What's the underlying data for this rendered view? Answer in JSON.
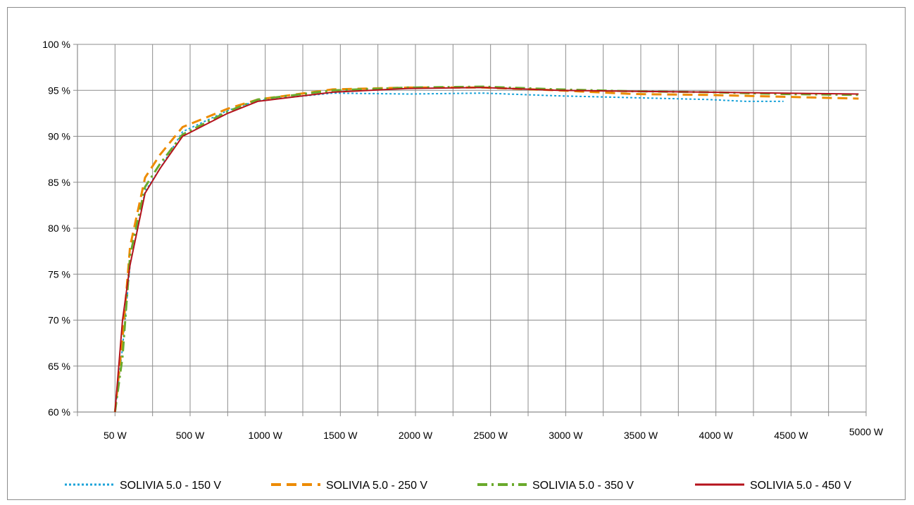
{
  "chart_data": {
    "type": "line",
    "title": "",
    "xlabel": "",
    "ylabel": "",
    "ylim": [
      60,
      100
    ],
    "yticks": [
      "60 %",
      "65 %",
      "70 %",
      "75 %",
      "80 %",
      "85 %",
      "90 %",
      "95 %",
      "100 %"
    ],
    "xticks": [
      "50 W",
      "500 W",
      "1000 W",
      "1500 W",
      "2000 W",
      "2500 W",
      "3000 W",
      "3500 W",
      "4000 W",
      "4500 W",
      "5000 W"
    ],
    "grid": true,
    "legend_position": "bottom",
    "series": [
      {
        "name": "SOLIVIA 5.0 - 150 V",
        "color": "#1aa3d9",
        "dash": "dotted",
        "points": [
          [
            50,
            60
          ],
          [
            100,
            67
          ],
          [
            150,
            76
          ],
          [
            250,
            84
          ],
          [
            350,
            86.5
          ],
          [
            500,
            90.5
          ],
          [
            800,
            92.8
          ],
          [
            1000,
            93.9
          ],
          [
            1500,
            94.7
          ],
          [
            2000,
            94.6
          ],
          [
            2500,
            94.7
          ],
          [
            3000,
            94.4
          ],
          [
            3500,
            94.2
          ],
          [
            4000,
            94.0
          ],
          [
            4250,
            93.8
          ],
          [
            4500,
            93.8
          ]
        ]
      },
      {
        "name": "SOLIVIA 5.0 - 250 V",
        "color": "#ed8b00",
        "dash": "dashed",
        "points": [
          [
            50,
            60
          ],
          [
            100,
            68
          ],
          [
            150,
            78
          ],
          [
            250,
            85.5
          ],
          [
            350,
            88
          ],
          [
            500,
            91
          ],
          [
            800,
            93
          ],
          [
            1000,
            94
          ],
          [
            1500,
            95.1
          ],
          [
            2000,
            95.3
          ],
          [
            2500,
            95.3
          ],
          [
            3000,
            95
          ],
          [
            3500,
            94.6
          ],
          [
            4000,
            94.5
          ],
          [
            4500,
            94.3
          ],
          [
            5000,
            94.1
          ]
        ]
      },
      {
        "name": "SOLIVIA 5.0 - 350 V",
        "color": "#6aaa2c",
        "dash": "dashdot",
        "points": [
          [
            50,
            60
          ],
          [
            100,
            66
          ],
          [
            150,
            77
          ],
          [
            250,
            84.5
          ],
          [
            350,
            87
          ],
          [
            500,
            90.2
          ],
          [
            800,
            92.7
          ],
          [
            1000,
            94
          ],
          [
            1500,
            95
          ],
          [
            2000,
            95.3
          ],
          [
            2500,
            95.4
          ],
          [
            3000,
            95.1
          ],
          [
            3500,
            94.9
          ],
          [
            4000,
            94.8
          ],
          [
            4500,
            94.6
          ],
          [
            5000,
            94.5
          ]
        ]
      },
      {
        "name": "SOLIVIA 5.0 - 450 V",
        "color": "#b5121b",
        "dash": "solid",
        "points": [
          [
            50,
            60
          ],
          [
            100,
            70
          ],
          [
            150,
            76
          ],
          [
            250,
            83.8
          ],
          [
            350,
            86.5
          ],
          [
            500,
            90
          ],
          [
            800,
            92.5
          ],
          [
            1000,
            93.8
          ],
          [
            1500,
            94.8
          ],
          [
            2000,
            95.2
          ],
          [
            2500,
            95.3
          ],
          [
            3000,
            95
          ],
          [
            3500,
            94.9
          ],
          [
            4000,
            94.8
          ],
          [
            4500,
            94.7
          ],
          [
            5000,
            94.6
          ]
        ]
      }
    ]
  }
}
